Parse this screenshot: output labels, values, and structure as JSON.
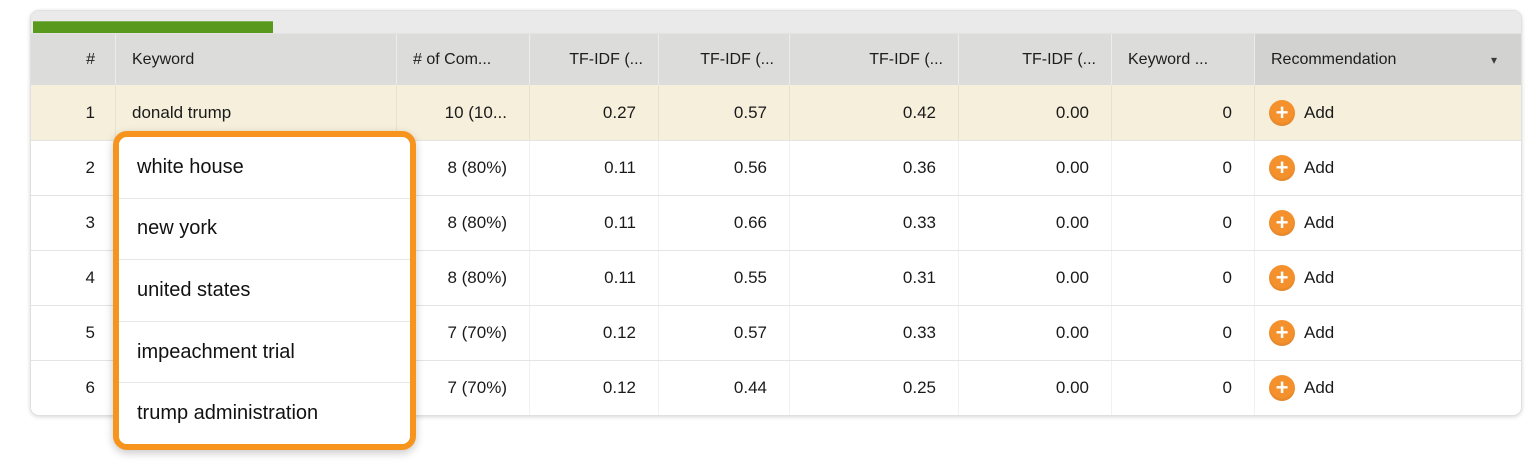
{
  "progress": {
    "percent_filled": 16,
    "color": "#58991e"
  },
  "table": {
    "header": {
      "columns": [
        "#",
        "Keyword",
        "# of Com...",
        "TF-IDF (...",
        "TF-IDF (...",
        "TF-IDF (...",
        "TF-IDF (...",
        "Keyword ...",
        "Recommendation"
      ],
      "sorted_column": "Recommendation"
    },
    "rows": [
      {
        "num": "1",
        "keyword": "donald trump",
        "competitors": "10 (10...",
        "tfidf_a": "0.27",
        "tfidf_b": "0.57",
        "tfidf_c": "0.42",
        "tfidf_d": "0.00",
        "keyword_count": "0",
        "action": "Add",
        "highlighted": true
      },
      {
        "num": "2",
        "keyword": "",
        "competitors": "8 (80%)",
        "tfidf_a": "0.11",
        "tfidf_b": "0.56",
        "tfidf_c": "0.36",
        "tfidf_d": "0.00",
        "keyword_count": "0",
        "action": "Add",
        "highlighted": false
      },
      {
        "num": "3",
        "keyword": "",
        "competitors": "8 (80%)",
        "tfidf_a": "0.11",
        "tfidf_b": "0.66",
        "tfidf_c": "0.33",
        "tfidf_d": "0.00",
        "keyword_count": "0",
        "action": "Add",
        "highlighted": false
      },
      {
        "num": "4",
        "keyword": "",
        "competitors": "8 (80%)",
        "tfidf_a": "0.11",
        "tfidf_b": "0.55",
        "tfidf_c": "0.31",
        "tfidf_d": "0.00",
        "keyword_count": "0",
        "action": "Add",
        "highlighted": false
      },
      {
        "num": "5",
        "keyword": "",
        "competitors": "7 (70%)",
        "tfidf_a": "0.12",
        "tfidf_b": "0.57",
        "tfidf_c": "0.33",
        "tfidf_d": "0.00",
        "keyword_count": "0",
        "action": "Add",
        "highlighted": false
      },
      {
        "num": "6",
        "keyword": "",
        "competitors": "7 (70%)",
        "tfidf_a": "0.12",
        "tfidf_b": "0.44",
        "tfidf_c": "0.25",
        "tfidf_d": "0.00",
        "keyword_count": "0",
        "action": "Add",
        "highlighted": false
      }
    ],
    "colors": {
      "highlight_row": "#f5efdb",
      "accent_orange": "#f5912d",
      "header_bg": "#dcdcdb",
      "sorted_header_bg": "#d2d2d1"
    }
  },
  "icons": {
    "sort_arrow_glyph": "▾",
    "plus_glyph": "+"
  },
  "overlay": {
    "keywords": [
      "white house",
      "new york",
      "united states",
      "impeachment trial",
      "trump administration"
    ],
    "border_color": "#f7941e"
  }
}
